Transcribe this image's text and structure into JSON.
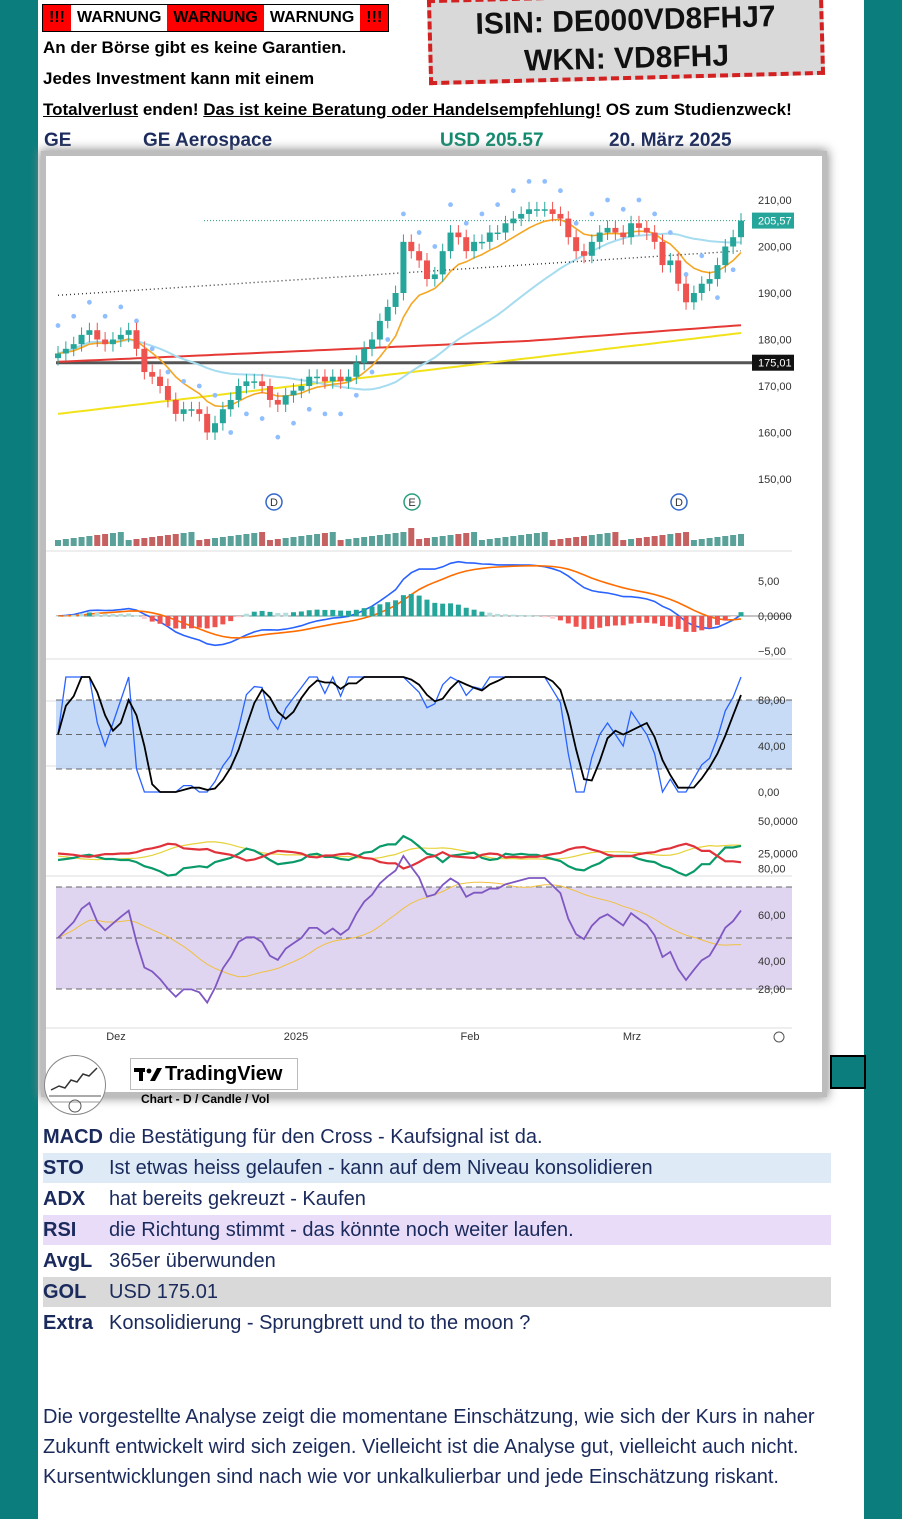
{
  "warnings": [
    "!!!",
    "WARNUNG",
    "WARNUNG",
    "WARNUNG",
    "!!!"
  ],
  "isin_line": "ISIN: DE000VD8FHJ7",
  "wkn_line": "WKN: VD8FHJ",
  "disclaimer": {
    "line1": "An der Börse gibt es keine Garantien.",
    "line2": "Jedes Investment kann mit einem",
    "line3_u1": "Totalverlust",
    "line3_t1": " enden! ",
    "line3_u2": "Das ist keine Beratung oder Handelsempfehlung!",
    "line3_t2": " OS  zum Studienzweck!"
  },
  "header": {
    "ticker": "GE",
    "name": "GE Aerospace",
    "price": "USD 205.57",
    "date": "20. März 2025"
  },
  "colors": {
    "teal": "#0b7d7d",
    "price_green": "#138a6e",
    "navy": "#1a2a5c",
    "warn_red": "#ff0000"
  },
  "chart_data": {
    "type": "candlestick",
    "price_axis_ticks": [
      "210,00",
      "200,00",
      "190,00",
      "180,00",
      "170,00",
      "160,00",
      "150,00"
    ],
    "last_price_label": "205,57",
    "gol_label": "175,01",
    "x_ticks": [
      "Dez",
      "2025",
      "Feb",
      "Mrz"
    ],
    "event_markers": [
      "D",
      "E",
      "D"
    ],
    "macd_ticks": [
      "5,00",
      "0,0000",
      "−5,00"
    ],
    "sto_ticks": [
      "80,00",
      "40,00",
      "0,00"
    ],
    "adx_ticks": [
      "50,0000",
      "25,0000"
    ],
    "rsi_ticks": [
      "80,00",
      "60,00",
      "40,00",
      "28,00"
    ],
    "closes": [
      177,
      178,
      179,
      181,
      182,
      180,
      179,
      180,
      181,
      182,
      178,
      173,
      172,
      170,
      167,
      164,
      165,
      165,
      164,
      160,
      162,
      165,
      167,
      170,
      171,
      171,
      170,
      167,
      166,
      168,
      169,
      170,
      172,
      172,
      171,
      172,
      171,
      172,
      175,
      178,
      180,
      184,
      187,
      190,
      201,
      199,
      197,
      193,
      194,
      199,
      203,
      202,
      199,
      201,
      201,
      203,
      203,
      205,
      206,
      207,
      208,
      208,
      208,
      207,
      206,
      202,
      199,
      198,
      201,
      203,
      204,
      203,
      202,
      205,
      204,
      203,
      201,
      196,
      197,
      192,
      188,
      190,
      192,
      193,
      196,
      200,
      202,
      205.57
    ],
    "gol": 175.01
  },
  "brand": {
    "name": "TradingView",
    "sub": "Chart - D / Candle / Vol"
  },
  "analysis": [
    {
      "key": "MACD",
      "value": "die Bestätigung für den Cross - Kaufsignal ist da.",
      "bg": "#ffffff"
    },
    {
      "key": "STO",
      "value": "Ist etwas heiss gelaufen - kann auf dem Niveau konsolidieren",
      "bg": "#deeaf6"
    },
    {
      "key": "ADX",
      "value": "hat bereits gekreuzt - Kaufen",
      "bg": "#ffffff"
    },
    {
      "key": "RSI",
      "value": "die Richtung stimmt - das könnte noch weiter laufen.",
      "bg": "#e8dcf8"
    },
    {
      "key": "AvgL",
      "value": "365er überwunden",
      "bg": "#ffffff"
    },
    {
      "key": "GOL",
      "value": "USD 175.01",
      "bg": "#d9d9d9"
    },
    {
      "key": "Extra",
      "value": "Konsolidierung - Sprungbrett und to the moon ?",
      "bg": "#ffffff"
    }
  ],
  "footer": {
    "line1": "Die vorgestellte Analyse zeigt die momentane Einschätzung, wie sich der Kurs in naher",
    "line2": "Zukunft entwickelt wird sich zeigen. Vielleicht ist die Analyse gut, vielleicht auch nicht.",
    "line3": "Kursentwicklungen sind nach wie vor unkalkulierbar und jede Einschätzung riskant."
  }
}
